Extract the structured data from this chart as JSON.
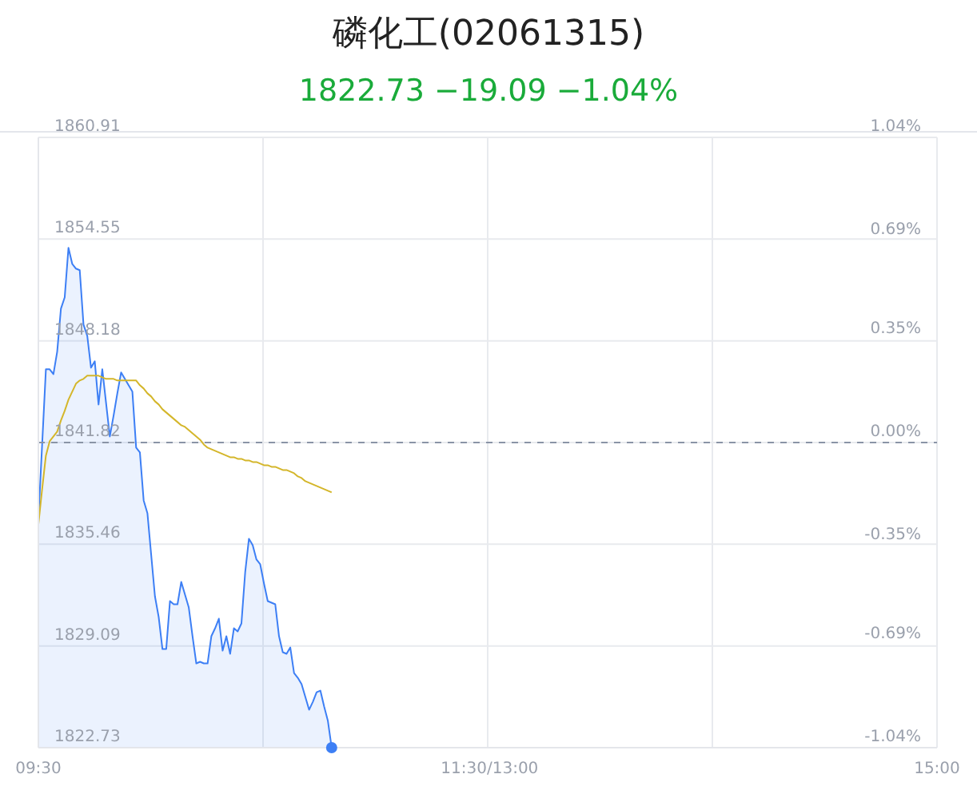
{
  "chart_data": {
    "type": "area",
    "title": "磷化工(02061315)",
    "subtitle": "1822.73 −19.09 −1.04%",
    "categories": [
      "09:30",
      null,
      null,
      null,
      null,
      null,
      null,
      null,
      null,
      null,
      null,
      null,
      null,
      null,
      null,
      null,
      null,
      null,
      null,
      null,
      null,
      null,
      null,
      null,
      null,
      null,
      null,
      null,
      null,
      null,
      null,
      null,
      null,
      null,
      null,
      null,
      null,
      null,
      null,
      null,
      null,
      null,
      null,
      null,
      null,
      null,
      null,
      null,
      null,
      null,
      null,
      null,
      null,
      null,
      null,
      null,
      null,
      null,
      null,
      null,
      null,
      null,
      null,
      null,
      null,
      null,
      null,
      null,
      null,
      null,
      null,
      null,
      null,
      null,
      null,
      null,
      null,
      null,
      null,
      null,
      null,
      null,
      null,
      null,
      null,
      null,
      null,
      null,
      null,
      null,
      null,
      null,
      null,
      null,
      null,
      null,
      null,
      null,
      null,
      null,
      null,
      null,
      null,
      null,
      null,
      null,
      null,
      null,
      null,
      null,
      null,
      null,
      null,
      null,
      null,
      null,
      null,
      null,
      null,
      null,
      "11:30/13:00",
      null,
      null,
      null,
      null,
      null,
      null,
      null,
      null,
      null,
      null,
      null,
      null,
      null,
      null,
      null,
      null,
      null,
      null,
      null,
      null,
      null,
      null,
      null,
      null,
      null,
      null,
      null,
      null,
      null,
      null,
      null,
      null,
      null,
      null,
      null,
      null,
      null,
      null,
      null,
      null,
      null,
      null,
      null,
      null,
      null,
      null,
      null,
      null,
      null,
      null,
      null,
      null,
      null,
      null,
      null,
      null,
      null,
      null,
      null,
      null,
      null,
      null,
      null,
      null,
      null,
      null,
      null,
      null,
      null,
      null,
      null,
      null,
      null,
      null,
      null,
      null,
      null,
      null,
      null,
      null,
      null,
      null,
      null,
      null,
      null,
      null,
      null,
      null,
      null,
      null,
      null,
      null,
      null,
      null,
      null,
      null,
      null,
      null,
      null,
      null,
      null,
      null,
      null,
      null,
      null,
      null,
      null,
      null,
      null,
      null,
      null,
      null,
      null,
      null,
      null,
      null,
      null,
      null,
      "15:00"
    ],
    "ylim": [
      1822.73,
      1860.91
    ],
    "yticks": [
      1822.73,
      1829.09,
      1835.46,
      1841.82,
      1848.18,
      1854.55,
      1860.91
    ],
    "y2lim": [
      -1.04,
      1.04
    ],
    "y2ticks": [
      {
        "value": -1.04,
        "label": "-1.04%"
      },
      {
        "value": -0.69,
        "label": "-0.69%"
      },
      {
        "value": -0.35,
        "label": "-0.35%"
      },
      {
        "value": 0,
        "label": "0.00%"
      },
      {
        "value": 0.35,
        "label": "0.35%"
      },
      {
        "value": 0.69,
        "label": "0.69%"
      },
      {
        "value": 1.04,
        "label": "1.04%"
      }
    ],
    "grid": true,
    "marker": "none",
    "ref_lines": [
      {
        "axis": "y",
        "value": 1841.82,
        "color": "#8a94a6",
        "line_style": "dashed"
      }
    ],
    "series": [
      {
        "color": "#3d7ff5",
        "values": [
          1837.0,
          1841.7,
          1846.4,
          1846.4,
          1846.1,
          1847.5,
          1850.2,
          1850.9,
          1854.0,
          1853.0,
          1852.7,
          1852.6,
          1849.2,
          1848.5,
          1846.5,
          1846.9,
          1844.2,
          1846.4,
          1844.3,
          1842.2,
          1843.5,
          1844.9,
          1846.2,
          1845.8,
          1845.4,
          1845.0,
          1841.5,
          1841.2,
          1838.2,
          1837.4,
          1834.8,
          1832.2,
          1830.9,
          1828.9,
          1828.9,
          1831.9,
          1831.7,
          1831.7,
          1833.1,
          1832.3,
          1831.5,
          1829.7,
          1828.0,
          1828.1,
          1828.0,
          1828.0,
          1829.7,
          1830.2,
          1830.8,
          1828.8,
          1829.7,
          1828.6,
          1830.2,
          1830.0,
          1830.5,
          1833.7,
          1835.8,
          1835.4,
          1834.5,
          1834.2,
          1833.0,
          1831.9,
          1831.8,
          1831.7,
          1829.7,
          1828.7,
          1828.6,
          1829.0,
          1827.4,
          1827.1,
          1826.7,
          1825.9,
          1825.1,
          1825.6,
          1826.2,
          1826.3,
          1825.3,
          1824.4,
          1822.73,
          null,
          null,
          null,
          null,
          null,
          null,
          null,
          null,
          null,
          null,
          null,
          null,
          null,
          null,
          null,
          null,
          null,
          null,
          null,
          null,
          null,
          null,
          null,
          null,
          null,
          null,
          null,
          null,
          null,
          null,
          null,
          null,
          null,
          null,
          null,
          null,
          null,
          null,
          null,
          null,
          null,
          null,
          null,
          null,
          null,
          null,
          null,
          null,
          null,
          null,
          null,
          null,
          null,
          null,
          null,
          null,
          null,
          null,
          null,
          null,
          null,
          null,
          null,
          null,
          null,
          null,
          null,
          null,
          null,
          null,
          null,
          null,
          null,
          null,
          null,
          null,
          null,
          null,
          null,
          null,
          null,
          null,
          null,
          null,
          null,
          null,
          null,
          null,
          null,
          null,
          null,
          null,
          null,
          null,
          null,
          null,
          null,
          null,
          null,
          null,
          null,
          null,
          null,
          null,
          null,
          null,
          null,
          null,
          null,
          null,
          null,
          null,
          null,
          null,
          null,
          null,
          null,
          null,
          null,
          null,
          null,
          null,
          null,
          null,
          null,
          null,
          null,
          null,
          null,
          null,
          null,
          null,
          null,
          null,
          null,
          null,
          null,
          null,
          null,
          null,
          null,
          null,
          null,
          null,
          null,
          null,
          null,
          null,
          null,
          null,
          null,
          null,
          null,
          null,
          null,
          null,
          null,
          null,
          null,
          null,
          null
        ]
      },
      {
        "type": "line",
        "color": "#d4b62a",
        "values": [
          1836.7,
          1838.9,
          1841.0,
          1841.9,
          1842.2,
          1842.5,
          1843.2,
          1843.8,
          1844.5,
          1845.0,
          1845.5,
          1845.7,
          1845.8,
          1846.0,
          1846.0,
          1846.0,
          1846.0,
          1845.9,
          1845.8,
          1845.8,
          1845.8,
          1845.7,
          1845.7,
          1845.7,
          1845.7,
          1845.7,
          1845.7,
          1845.4,
          1845.2,
          1844.9,
          1844.7,
          1844.4,
          1844.2,
          1843.9,
          1843.7,
          1843.5,
          1843.3,
          1843.1,
          1842.9,
          1842.8,
          1842.6,
          1842.4,
          1842.2,
          1842.0,
          1841.7,
          1841.5,
          1841.4,
          1841.3,
          1841.2,
          1841.1,
          1841.0,
          1840.9,
          1840.9,
          1840.8,
          1840.8,
          1840.7,
          1840.7,
          1840.6,
          1840.6,
          1840.5,
          1840.4,
          1840.4,
          1840.3,
          1840.3,
          1840.2,
          1840.1,
          1840.1,
          1840.0,
          1839.9,
          1839.7,
          1839.6,
          1839.4,
          1839.3,
          1839.2,
          1839.1,
          1839.0,
          1838.9,
          1838.8,
          1838.7,
          null,
          null,
          null,
          null,
          null,
          null,
          null,
          null,
          null,
          null,
          null,
          null,
          null,
          null,
          null,
          null,
          null,
          null,
          null,
          null,
          null,
          null,
          null,
          null,
          null,
          null,
          null,
          null,
          null,
          null,
          null,
          null,
          null,
          null,
          null,
          null,
          null,
          null,
          null,
          null,
          null,
          null,
          null,
          null,
          null,
          null,
          null,
          null,
          null,
          null,
          null,
          null,
          null,
          null,
          null,
          null,
          null,
          null,
          null,
          null,
          null,
          null,
          null,
          null,
          null,
          null,
          null,
          null,
          null,
          null,
          null,
          null,
          null,
          null,
          null,
          null,
          null,
          null,
          null,
          null,
          null,
          null,
          null,
          null,
          null,
          null,
          null,
          null,
          null,
          null,
          null,
          null,
          null,
          null,
          null,
          null,
          null,
          null,
          null,
          null,
          null,
          null,
          null,
          null,
          null,
          null,
          null,
          null,
          null,
          null,
          null,
          null,
          null,
          null,
          null,
          null,
          null,
          null,
          null,
          null,
          null,
          null,
          null,
          null,
          null,
          null,
          null,
          null,
          null,
          null,
          null,
          null,
          null,
          null,
          null,
          null,
          null,
          null,
          null,
          null,
          null,
          null,
          null,
          null,
          null,
          null,
          null,
          null,
          null,
          null,
          null,
          null,
          null,
          null,
          null,
          null,
          null,
          null,
          null,
          null,
          null
        ]
      }
    ]
  }
}
